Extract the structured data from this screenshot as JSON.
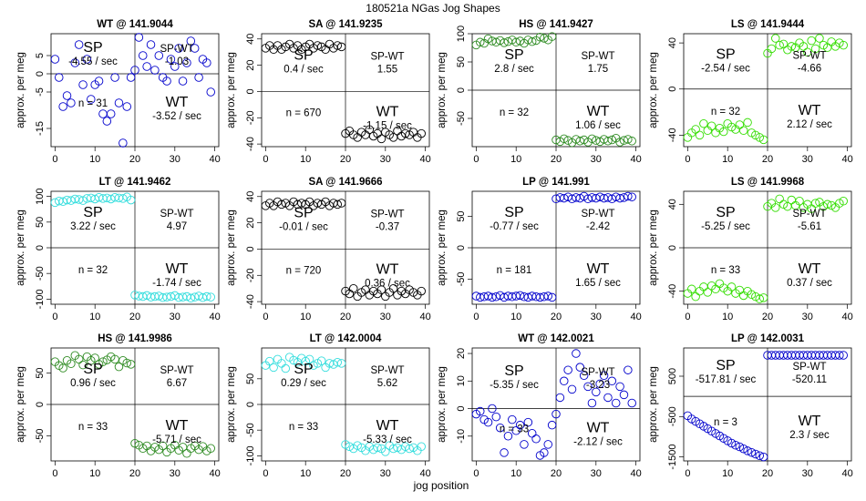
{
  "figure": {
    "title": "180521a    NGas Jog Shapes",
    "xlabel": "jog position",
    "ylabel": "approx. per meg"
  },
  "chart_data": [
    {
      "type": "scatter",
      "title": "WT @ 141.9044",
      "color": "#0000cc",
      "xlim": [
        -1,
        41
      ],
      "ylim": [
        -20,
        11
      ],
      "xticks": [
        0,
        10,
        20,
        30,
        40
      ],
      "yticks": [
        -15,
        -5,
        0,
        5
      ],
      "y": [
        4,
        -1,
        -9,
        -6,
        -8,
        3,
        8,
        -3,
        4,
        -7,
        -3,
        -2,
        -11,
        -13,
        -11,
        -1,
        -8,
        -19,
        -9,
        -1,
        1,
        10,
        5,
        2,
        8,
        1,
        5,
        -1,
        -2,
        4,
        2,
        7,
        -2,
        3,
        9,
        7,
        -1,
        4,
        3,
        -5
      ],
      "n_label": "n = 31",
      "sp_label": "SP",
      "sp_rate": "-4.55 / sec",
      "wt_label": "WT",
      "wt_rate": "-3.52 / sec",
      "diff_label": "SP-WT",
      "diff_rate": "-1.03"
    },
    {
      "type": "scatter",
      "title": "SA @ 141.9235",
      "color": "#000000",
      "xlim": [
        -1,
        41
      ],
      "ylim": [
        -42,
        44
      ],
      "xticks": [
        0,
        10,
        20,
        30,
        40
      ],
      "yticks": [
        -40,
        -20,
        0,
        20,
        40
      ],
      "y": [
        33,
        35,
        32,
        35,
        32,
        34,
        36,
        33,
        35,
        32,
        34,
        36,
        33,
        35,
        34,
        32,
        36,
        33,
        35,
        34,
        -32,
        -30,
        -33,
        -35,
        -31,
        -33,
        -29,
        -34,
        -32,
        -36,
        -31,
        -33,
        -35,
        -30,
        -34,
        -32,
        -33,
        -31,
        -35,
        -32
      ],
      "n_label": "n = 670",
      "sp_label": "SP",
      "sp_rate": "0.4 / sec",
      "wt_label": "WT",
      "wt_rate": "-1.15 / sec",
      "diff_label": "SP-WT",
      "diff_rate": "1.55"
    },
    {
      "type": "scatter",
      "title": "HS @ 141.9427",
      "color": "#2e8b22",
      "xlim": [
        -1,
        41
      ],
      "ylim": [
        -100,
        100
      ],
      "xticks": [
        0,
        10,
        20,
        30,
        40
      ],
      "yticks": [
        -50,
        0,
        50,
        100
      ],
      "y": [
        80,
        85,
        83,
        91,
        87,
        85,
        88,
        84,
        86,
        89,
        85,
        87,
        83,
        89,
        86,
        88,
        94,
        92,
        89,
        95,
        -88,
        -91,
        -86,
        -89,
        -93,
        -87,
        -90,
        -88,
        -92,
        -86,
        -89,
        -91,
        -87,
        -90,
        -88,
        -85,
        -92,
        -89,
        -87,
        -90
      ],
      "n_label": "n = 32",
      "sp_label": "SP",
      "sp_rate": "2.8 / sec",
      "wt_label": "WT",
      "wt_rate": "1.06 / sec",
      "diff_label": "SP-WT",
      "diff_rate": "1.75"
    },
    {
      "type": "scatter",
      "title": "LS @ 141.9444",
      "color": "#33dd00",
      "xlim": [
        -1,
        41
      ],
      "ylim": [
        -50,
        48
      ],
      "xticks": [
        0,
        10,
        20,
        30,
        40
      ],
      "yticks": [
        -40,
        0,
        40
      ],
      "y": [
        -42,
        -38,
        -35,
        -40,
        -30,
        -36,
        -32,
        -38,
        -34,
        -37,
        -30,
        -33,
        -35,
        -31,
        -36,
        -29,
        -38,
        -40,
        -42,
        -44,
        31,
        35,
        44,
        38,
        39,
        34,
        37,
        36,
        40,
        37,
        32,
        42,
        35,
        44,
        38,
        36,
        41,
        37,
        40,
        38
      ],
      "n_label": "n = 32",
      "sp_label": "SP",
      "sp_rate": "-2.54 / sec",
      "wt_label": "WT",
      "wt_rate": "2.12 / sec",
      "diff_label": "SP-WT",
      "diff_rate": "-4.66"
    },
    {
      "type": "scatter",
      "title": "LT @ 141.9462",
      "color": "#33dddd",
      "xlim": [
        -1,
        41
      ],
      "ylim": [
        -110,
        110
      ],
      "xticks": [
        0,
        10,
        20,
        30,
        40
      ],
      "yticks": [
        -100,
        -50,
        0,
        50,
        100
      ],
      "y": [
        88,
        91,
        90,
        93,
        92,
        95,
        94,
        92,
        96,
        97,
        95,
        98,
        96,
        97,
        95,
        98,
        97,
        96,
        99,
        93,
        -92,
        -94,
        -95,
        -93,
        -96,
        -95,
        -94,
        -97,
        -96,
        -95,
        -93,
        -97,
        -96,
        -95,
        -98,
        -96,
        -94,
        -97,
        -95,
        -96
      ],
      "n_label": "n = 32",
      "sp_label": "SP",
      "sp_rate": "3.22 / sec",
      "wt_label": "WT",
      "wt_rate": "-1.74 / sec",
      "diff_label": "SP-WT",
      "diff_rate": "4.97"
    },
    {
      "type": "scatter",
      "title": "SA @ 141.9666",
      "color": "#000000",
      "xlim": [
        -1,
        41
      ],
      "ylim": [
        -42,
        44
      ],
      "xticks": [
        0,
        10,
        20,
        30,
        40
      ],
      "yticks": [
        -40,
        -20,
        0,
        20,
        40
      ],
      "y": [
        33,
        35,
        33,
        36,
        34,
        35,
        33,
        36,
        34,
        35,
        34,
        36,
        33,
        35,
        34,
        36,
        33,
        35,
        34,
        35,
        -32,
        -34,
        -30,
        -36,
        -33,
        -31,
        -35,
        -32,
        -34,
        -31,
        -36,
        -33,
        -30,
        -35,
        -32,
        -34,
        -31,
        -33,
        -35,
        -32
      ],
      "n_label": "n = 720",
      "sp_label": "SP",
      "sp_rate": "-0.01 / sec",
      "wt_label": "WT",
      "wt_rate": "0.36 / sec",
      "diff_label": "SP-WT",
      "diff_rate": "-0.37"
    },
    {
      "type": "scatter",
      "title": "LP @ 141.991",
      "color": "#0000cc",
      "xlim": [
        -1,
        41
      ],
      "ylim": [
        -90,
        90
      ],
      "xticks": [
        0,
        10,
        20,
        30,
        40
      ],
      "yticks": [
        -50,
        0,
        50
      ],
      "y": [
        -77,
        -79,
        -78,
        -77,
        -79,
        -78,
        -76,
        -79,
        -77,
        -78,
        -77,
        -76,
        -78,
        -79,
        -77,
        -78,
        -79,
        -78,
        -77,
        -79,
        78,
        80,
        79,
        81,
        78,
        80,
        79,
        82,
        78,
        80,
        79,
        81,
        79,
        80,
        78,
        81,
        79,
        80,
        82,
        81
      ],
      "n_label": "n = 181",
      "sp_label": "SP",
      "sp_rate": "-0.77 / sec",
      "wt_label": "WT",
      "wt_rate": "1.65 / sec",
      "diff_label": "SP-WT",
      "diff_rate": "-2.42"
    },
    {
      "type": "scatter",
      "title": "LS @ 141.9968",
      "color": "#33dd00",
      "xlim": [
        -1,
        41
      ],
      "ylim": [
        -52,
        52
      ],
      "xticks": [
        0,
        10,
        20,
        30,
        40
      ],
      "yticks": [
        -40,
        0,
        40
      ],
      "y": [
        -42,
        -38,
        -45,
        -40,
        -36,
        -41,
        -35,
        -38,
        -33,
        -37,
        -40,
        -36,
        -42,
        -39,
        -44,
        -40,
        -43,
        -45,
        -47,
        -46,
        38,
        41,
        37,
        45,
        40,
        38,
        44,
        39,
        43,
        37,
        40,
        36,
        41,
        42,
        38,
        40,
        39,
        37,
        41,
        43
      ],
      "n_label": "n = 33",
      "sp_label": "SP",
      "sp_rate": "-5.25 / sec",
      "wt_label": "WT",
      "wt_rate": "0.37 / sec",
      "diff_label": "SP-WT",
      "diff_rate": "-5.61"
    },
    {
      "type": "scatter",
      "title": "HS @ 141.9986",
      "color": "#2e8b22",
      "xlim": [
        -1,
        41
      ],
      "ylim": [
        -90,
        90
      ],
      "xticks": [
        0,
        10,
        20,
        30,
        40
      ],
      "yticks": [
        -50,
        0,
        50
      ],
      "y": [
        68,
        62,
        58,
        70,
        65,
        78,
        72,
        63,
        76,
        70,
        74,
        64,
        68,
        71,
        76,
        72,
        60,
        70,
        66,
        64,
        -62,
        -65,
        -70,
        -66,
        -74,
        -68,
        -72,
        -66,
        -76,
        -70,
        -65,
        -73,
        -68,
        -78,
        -70,
        -66,
        -72,
        -67,
        -74,
        -70
      ],
      "n_label": "n = 33",
      "sp_label": "SP",
      "sp_rate": "0.96 / sec",
      "wt_label": "WT",
      "wt_rate": "-5.71 / sec",
      "diff_label": "SP-WT",
      "diff_rate": "6.67"
    },
    {
      "type": "scatter",
      "title": "LT @ 142.0004",
      "color": "#33dddd",
      "xlim": [
        -1,
        41
      ],
      "ylim": [
        -110,
        110
      ],
      "xticks": [
        0,
        10,
        20,
        30,
        40
      ],
      "yticks": [
        -100,
        -50,
        0,
        50
      ],
      "y": [
        76,
        84,
        72,
        88,
        80,
        70,
        92,
        86,
        82,
        90,
        84,
        88,
        76,
        80,
        85,
        72,
        80,
        78,
        82,
        80,
        -78,
        -82,
        -86,
        -80,
        -84,
        -90,
        -82,
        -88,
        -84,
        -86,
        -92,
        -80,
        -86,
        -84,
        -88,
        -82,
        -86,
        -84,
        -90,
        -82
      ],
      "n_label": "n = 33",
      "sp_label": "SP",
      "sp_rate": "0.29 / sec",
      "wt_label": "WT",
      "wt_rate": "-5.33 / sec",
      "diff_label": "SP-WT",
      "diff_rate": "5.62"
    },
    {
      "type": "scatter",
      "title": "WT @ 142.0021",
      "color": "#0000cc",
      "xlim": [
        -1,
        41
      ],
      "ylim": [
        -19,
        22
      ],
      "xticks": [
        0,
        10,
        20,
        30,
        40
      ],
      "yticks": [
        -10,
        0,
        10,
        20
      ],
      "y": [
        -2,
        -1,
        -4,
        -5,
        0,
        -3,
        -7,
        -16,
        -10,
        -4,
        -8,
        -6,
        -13,
        -5,
        -9,
        -11,
        -17,
        -16,
        -13,
        -6,
        -2,
        4,
        10,
        14,
        7,
        20,
        15,
        12,
        8,
        2,
        6,
        9,
        12,
        4,
        10,
        2,
        8,
        5,
        14,
        2
      ],
      "n_label": "n = 33",
      "sp_label": "SP",
      "sp_rate": "-5.35 / sec",
      "wt_label": "WT",
      "wt_rate": "-2.12 / sec",
      "diff_label": "SP-WT",
      "diff_rate": "-3.23"
    },
    {
      "type": "scatter",
      "title": "LP @ 142.0031",
      "color": "#0000cc",
      "xlim": [
        -1,
        41
      ],
      "ylim": [
        -1600,
        1200
      ],
      "xticks": [
        0,
        10,
        20,
        30,
        40
      ],
      "yticks": [
        -1500,
        -500,
        500
      ],
      "y": [
        -480,
        -560,
        -620,
        -680,
        -740,
        -800,
        -860,
        -920,
        -980,
        -1040,
        -1100,
        -1160,
        -1210,
        -1250,
        -1300,
        -1350,
        -1390,
        -1430,
        -1470,
        -1500,
        1020,
        1020,
        1020,
        1020,
        1020,
        1020,
        1020,
        1020,
        1020,
        1020,
        1020,
        1020,
        1020,
        1020,
        1020,
        1020,
        1020,
        1020,
        1020,
        1020
      ],
      "n_label": "n = 3",
      "sp_label": "SP",
      "sp_rate": "-517.81 / sec",
      "wt_label": "WT",
      "wt_rate": "2.3 / sec",
      "diff_label": "SP-WT",
      "diff_rate": "-520.11"
    }
  ]
}
